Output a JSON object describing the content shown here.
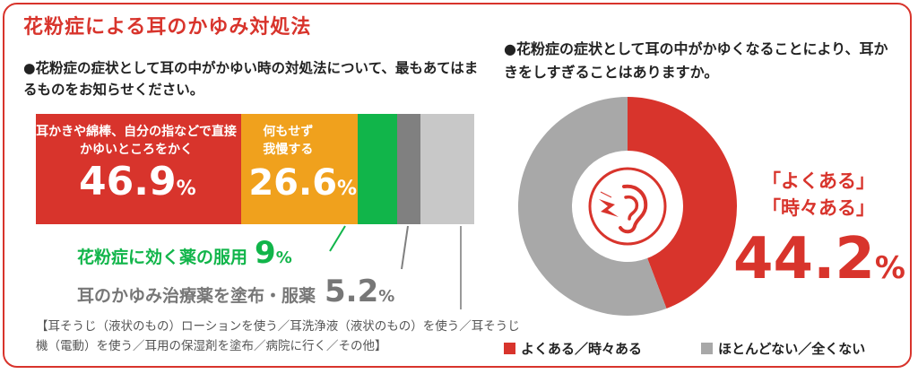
{
  "title": "花粉症による耳のかゆみ対処法",
  "question_left": "●花粉症の症状として耳の中がかゆい時の対処法について、最もあてはまるものをお知らせください。",
  "question_right": "●花粉症の症状として耳の中がかゆくなることにより、耳かきをしすぎることはありますか。",
  "bar": {
    "seg1_label": "耳かきや綿棒、自分の指などで直接かゆいところをかく",
    "seg1_value": "46.9",
    "seg2_label": "何もせず我慢する",
    "seg2_value": "26.6",
    "seg3_label": "花粉症に効く薬の服用",
    "seg3_value": "9",
    "seg4_label": "耳のかゆみ治療薬を塗布・服薬",
    "seg4_value": "5.2",
    "pct": "%",
    "others_text": "【耳そうじ（液状のもの）ローションを使う／耳洗浄液（液状のもの）を使う／耳そうじ機（電動）を使う／耳用の保湿剤を塗布／病院に行く／その他】",
    "colors": {
      "seg1": "#d8342c",
      "seg2": "#f0a11d",
      "seg3": "#11b54a",
      "seg4": "#808080",
      "seg5": "#c8c8c8"
    }
  },
  "donut": {
    "ann_line1": "「よくある」",
    "ann_line2": "「時々ある」",
    "value_text": "44.2",
    "pct": "%",
    "legend1": "よくある／時々ある",
    "legend2": "ほとんどない／全くない",
    "colors": {
      "yes": "#d8342c",
      "no": "#a8a8a8",
      "icon": "#d8342c"
    }
  },
  "chart_data": [
    {
      "type": "bar",
      "title": "●花粉症の症状として耳の中がかゆい時の対処法について、最もあてはまるものをお知らせください。",
      "orientation": "stacked-horizontal-100",
      "categories": [
        "耳かきや綿棒、自分の指などで直接かゆいところをかく",
        "何もせず我慢する",
        "花粉症に効く薬の服用",
        "耳のかゆみ治療薬を塗布・服薬",
        "【耳そうじ（液状のもの）ローションを使う／耳洗浄液（液状のもの）を使う／耳そうじ機（電動）を使う／耳用の保湿剤を塗布／病院に行く／その他】"
      ],
      "values": [
        46.9,
        26.6,
        9,
        5.2,
        12.3
      ],
      "unit": "%"
    },
    {
      "type": "pie",
      "variant": "donut",
      "title": "●花粉症の症状として耳の中がかゆくなることにより、耳かきをしすぎることはありますか。",
      "categories": [
        "よくある／時々ある",
        "ほとんどない／全くない"
      ],
      "values": [
        44.2,
        55.8
      ],
      "unit": "%"
    }
  ]
}
